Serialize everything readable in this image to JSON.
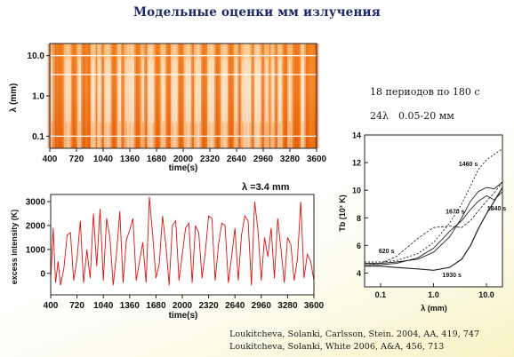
{
  "slide": {
    "title": "Модельные оценки мм излучения"
  },
  "notes": {
    "periods": "18 периодов по 180 с",
    "lambda_count": "24λ",
    "lambda_range": "0.05-20 мм"
  },
  "references": [
    "Loukitcheva, Solanki, Carlsson, Stein. 2004, AA, 419, 747",
    "Loukitcheva, Solanki, White 2006, A&A, 456, 713"
  ],
  "chart_data": [
    {
      "type": "heatmap",
      "title": "",
      "xlabel": "time(s)",
      "ylabel": "λ (mm)",
      "x_ticks": [
        "400",
        "720",
        "1040",
        "1360",
        "1680",
        "2000",
        "2320",
        "2640",
        "2960",
        "3280",
        "3600"
      ],
      "y_ticks": [
        "10.0",
        "1.0",
        "0.1"
      ],
      "xlim": [
        400,
        3600
      ],
      "ylim": [
        0.05,
        20
      ],
      "y_scale": "log",
      "horizontal_lines_mm": [
        10.0,
        3.4,
        0.1
      ],
      "colormap": "orange-red to white"
    },
    {
      "type": "line",
      "title": "λ =3.4 mm",
      "xlabel": "time(s)",
      "ylabel": "excess intensity (K)",
      "x_ticks": [
        "400",
        "720",
        "1040",
        "1360",
        "1680",
        "2000",
        "2320",
        "2640",
        "2960",
        "3280",
        "3600"
      ],
      "y_ticks": [
        "3000",
        "2000",
        "1000",
        "0"
      ],
      "xlim": [
        400,
        3600
      ],
      "ylim": [
        -900,
        3300
      ],
      "color": "#dd1111",
      "series": [
        {
          "x": [
            400,
            430,
            460,
            490,
            520,
            560,
            600,
            640,
            680,
            720,
            760,
            800,
            840,
            880,
            920,
            960,
            1000,
            1040,
            1080,
            1120,
            1160,
            1200,
            1240,
            1280,
            1320,
            1360,
            1400,
            1440,
            1480,
            1520,
            1560,
            1600,
            1640,
            1680,
            1720,
            1760,
            1800,
            1840,
            1880,
            1920,
            1960,
            2000,
            2040,
            2080,
            2120,
            2160,
            2200,
            2240,
            2280,
            2320,
            2360,
            2400,
            2440,
            2480,
            2520,
            2560,
            2600,
            2640,
            2680,
            2720,
            2760,
            2800,
            2840,
            2880,
            2920,
            2960,
            3000,
            3040,
            3080,
            3120,
            3160,
            3200,
            3240,
            3280,
            3320,
            3360,
            3400,
            3440,
            3480,
            3520,
            3560,
            3600
          ],
          "y": [
            -300,
            1900,
            -400,
            500,
            -500,
            200,
            1600,
            1700,
            -300,
            600,
            2200,
            -400,
            1000,
            -200,
            2500,
            300,
            2700,
            -300,
            2300,
            1500,
            -500,
            800,
            2600,
            -400,
            1400,
            1800,
            2300,
            -300,
            500,
            1300,
            -400,
            3200,
            1600,
            -200,
            400,
            2400,
            1200,
            -500,
            2000,
            2200,
            -300,
            800,
            1900,
            2100,
            -400,
            2000,
            1700,
            -200,
            900,
            2400,
            2300,
            -300,
            1200,
            2100,
            2000,
            -400,
            700,
            1900,
            -300,
            1600,
            2400,
            2200,
            -500,
            3000,
            1800,
            -300,
            1500,
            700,
            1900,
            -200,
            2300,
            1000,
            -400,
            1500,
            1200,
            -300,
            600,
            3000,
            -200,
            800,
            500,
            -300
          ]
        }
      ]
    },
    {
      "type": "line",
      "title": "",
      "xlabel": "λ (mm)",
      "ylabel": "Tb (10³ K)",
      "x_scale": "log",
      "x_ticks": [
        "0.1",
        "1.0",
        "10.0"
      ],
      "y_ticks": [
        "4",
        "6",
        "8",
        "10",
        "12",
        "14"
      ],
      "xlim": [
        0.05,
        20
      ],
      "ylim": [
        3,
        14
      ],
      "annotations": [
        "1460 s",
        "1670 s",
        "1840 s",
        "620 s",
        "1930 s"
      ],
      "series": [
        {
          "label": "1460 s",
          "x": [
            0.05,
            0.1,
            0.2,
            0.5,
            1.0,
            2.0,
            3.4,
            5.0,
            7.0,
            10.0,
            14.0,
            20.0
          ],
          "y": [
            4.8,
            4.8,
            4.9,
            5.4,
            6.2,
            7.6,
            9.0,
            10.3,
            11.5,
            12.2,
            12.6,
            13.0
          ]
        },
        {
          "label": "1670 s",
          "x": [
            0.05,
            0.1,
            0.2,
            0.5,
            1.0,
            2.0,
            3.4,
            5.0,
            7.0,
            10.0,
            14.0,
            20.0
          ],
          "y": [
            4.7,
            4.7,
            4.8,
            5.0,
            5.5,
            6.6,
            8.0,
            9.2,
            9.9,
            10.2,
            10.1,
            10.6
          ]
        },
        {
          "label": "1840 s",
          "x": [
            0.05,
            0.1,
            0.2,
            0.5,
            1.0,
            2.0,
            3.4,
            5.0,
            7.0,
            10.0,
            14.0,
            20.0
          ],
          "y": [
            4.6,
            4.6,
            4.7,
            5.1,
            5.8,
            7.0,
            7.8,
            8.6,
            9.2,
            9.6,
            9.3,
            9.9
          ]
        },
        {
          "label": "620 s",
          "x": [
            0.05,
            0.1,
            0.2,
            0.5,
            1.0,
            2.0,
            3.4,
            5.0,
            7.0,
            10.0,
            14.0,
            20.0
          ],
          "y": [
            4.6,
            4.7,
            5.2,
            6.5,
            7.3,
            7.4,
            7.3,
            7.8,
            8.5,
            9.2,
            9.8,
            10.6
          ]
        },
        {
          "label": "1930 s",
          "x": [
            0.05,
            0.1,
            0.2,
            0.5,
            1.0,
            2.0,
            3.4,
            5.0,
            7.0,
            10.0,
            14.0,
            20.0
          ],
          "y": [
            4.5,
            4.5,
            4.4,
            4.3,
            4.2,
            4.4,
            5.0,
            6.0,
            7.2,
            8.3,
            9.2,
            10.2
          ]
        }
      ]
    }
  ]
}
